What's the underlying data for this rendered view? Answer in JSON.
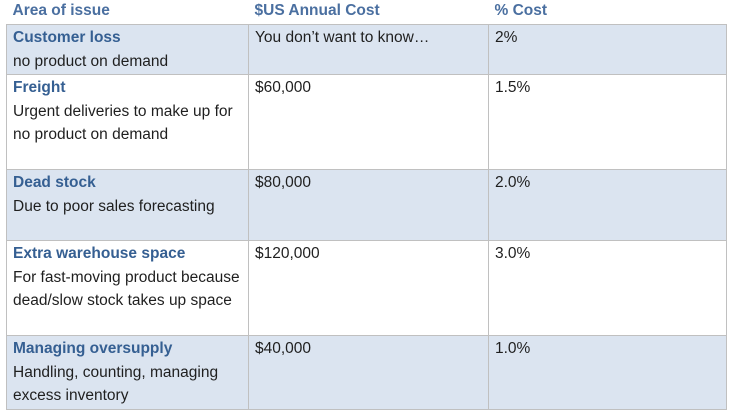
{
  "table": {
    "headers": [
      "Area of issue",
      "$US Annual Cost",
      "% Cost"
    ],
    "rows": [
      {
        "title": "Customer loss",
        "desc": "no product on demand",
        "cost": "You don’t want to know…",
        "pct": "2%"
      },
      {
        "title": "Freight",
        "desc": "Urgent deliveries to make up for no product on demand",
        "cost": "$60,000",
        "pct": "1.5%"
      },
      {
        "title": "Dead stock",
        "desc": "Due to poor sales forecasting",
        "cost": "$80,000",
        "pct": "2.0%"
      },
      {
        "title": "Extra warehouse space",
        "desc": "For fast-moving product because dead/slow stock takes up space",
        "cost": "$120,000",
        "pct": "3.0%"
      },
      {
        "title": "Managing oversupply",
        "desc": "Handling, counting, managing excess inventory",
        "cost": "$40,000",
        "pct": "1.0%"
      }
    ]
  },
  "colors": {
    "header_text": "#4a6fa0",
    "title_text": "#355f92",
    "shaded_row": "#dbe4f0",
    "border": "#c0c0c0"
  }
}
